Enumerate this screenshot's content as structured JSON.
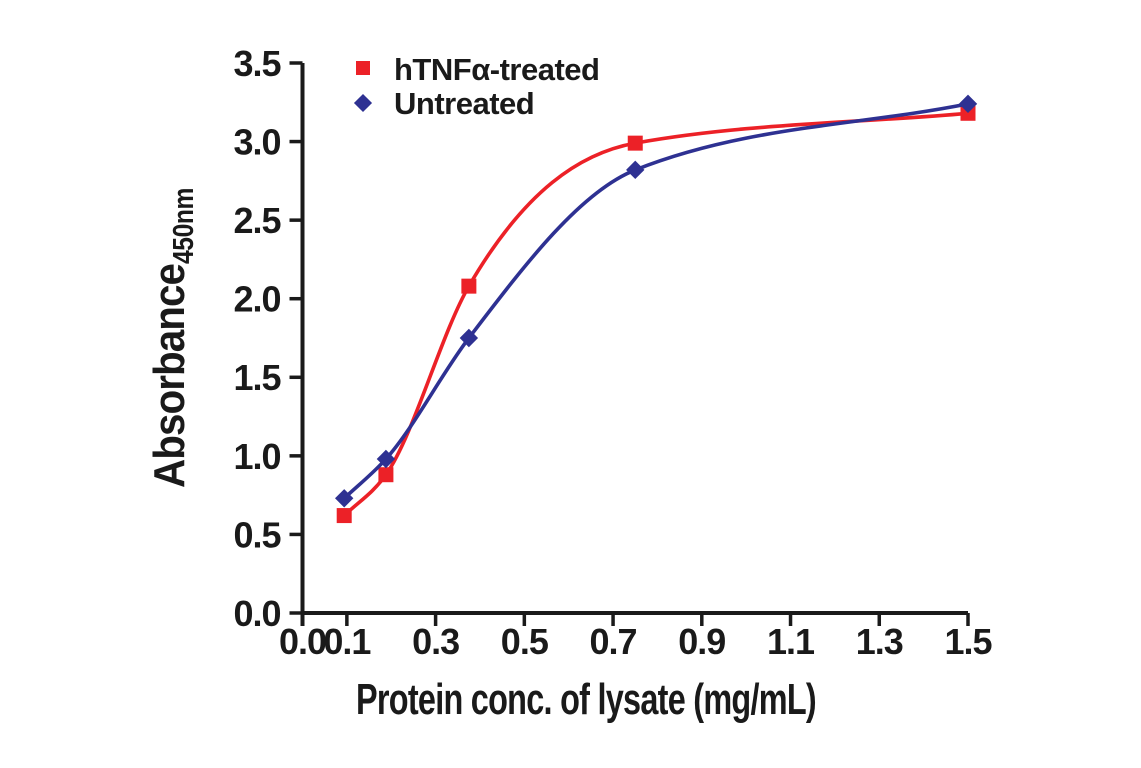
{
  "figure": {
    "background": "#ffffff",
    "axis_color": "#1a1a1a"
  },
  "chart_data": {
    "type": "line",
    "title": "",
    "xlabel": "Protein conc. of lysate (mg/mL)",
    "ylabel_main": "Absorbance",
    "ylabel_sub": "450nm",
    "xlim": [
      0,
      1.5
    ],
    "ylim": [
      0,
      3.5
    ],
    "grid": false,
    "legend_position": "top-left-inside",
    "x_ticks": {
      "values": [
        0,
        0.1,
        0.3,
        0.5,
        0.7,
        0.9,
        1.1,
        1.3,
        1.5
      ],
      "labels": [
        "0.0",
        "0.1",
        "0.3",
        "0.5",
        "0.7",
        "0.9",
        "1.1",
        "1.3",
        "1.5"
      ]
    },
    "y_ticks": {
      "values": [
        0,
        0.5,
        1,
        1.5,
        2,
        2.5,
        3,
        3.5
      ],
      "labels": [
        "0.0",
        "0.5",
        "1.0",
        "1.5",
        "2.0",
        "2.5",
        "3.0",
        "3.5"
      ]
    },
    "x": [
      0.094,
      0.188,
      0.375,
      0.75,
      1.5
    ],
    "series": [
      {
        "name": "hTNFα-treated",
        "marker": "square",
        "color": "#EC2127",
        "values": [
          0.62,
          0.88,
          2.08,
          2.99,
          3.18
        ]
      },
      {
        "name": "Untreated",
        "marker": "diamond",
        "color": "#2E3192",
        "values": [
          0.73,
          0.98,
          1.75,
          2.82,
          3.24
        ]
      }
    ]
  }
}
